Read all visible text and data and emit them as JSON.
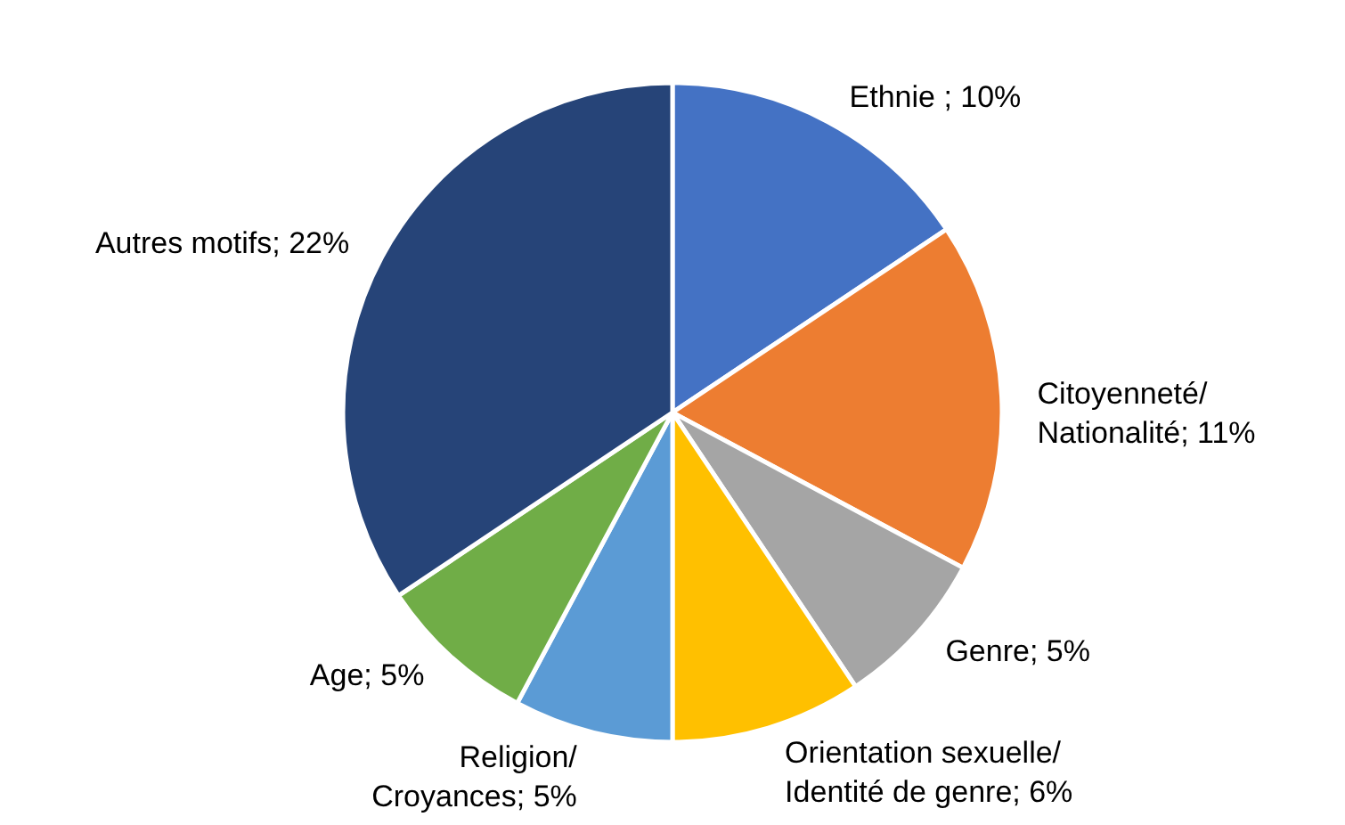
{
  "chart_data": {
    "type": "pie",
    "categories": [
      "Ethnie ; 10%",
      "Citoyenneté/ Nationalité; 11%",
      "Genre; 5%",
      "Orientation sexuelle/ Identité de genre; 6%",
      "Religion/ Croyances; 5%",
      "Age; 5%",
      "Autres motifs; 22%"
    ],
    "values": [
      10,
      11,
      5,
      6,
      5,
      5,
      22
    ],
    "colors": [
      "#4472c4",
      "#ed7d31",
      "#a5a5a5",
      "#ffc000",
      "#5b9bd5",
      "#70ad47",
      "#264478"
    ]
  }
}
